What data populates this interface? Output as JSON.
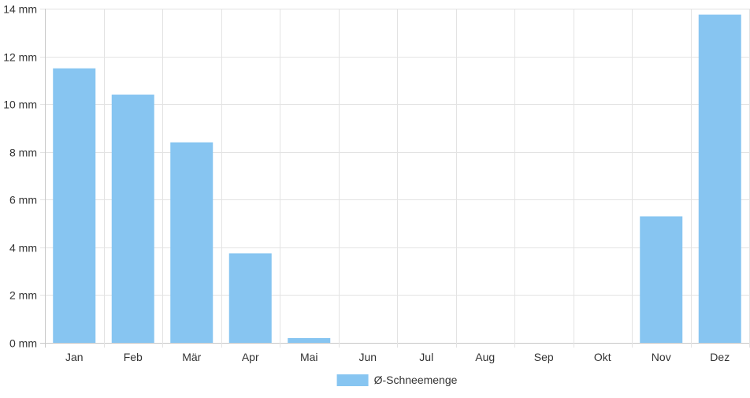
{
  "chart_data": {
    "type": "bar",
    "title": "",
    "xlabel": "",
    "ylabel": "",
    "categories": [
      "Jan",
      "Feb",
      "Mär",
      "Apr",
      "Mai",
      "Jun",
      "Jul",
      "Aug",
      "Sep",
      "Okt",
      "Nov",
      "Dez"
    ],
    "series": [
      {
        "name": "Ø-Schneemenge",
        "values": [
          11.5,
          10.4,
          8.4,
          3.75,
          0.2,
          0,
          0,
          0,
          0,
          0,
          5.3,
          13.75
        ],
        "color": "#87c5f1"
      }
    ],
    "ylim": [
      0,
      14
    ],
    "yticks": [
      0,
      2,
      4,
      6,
      8,
      10,
      12,
      14
    ],
    "ytick_labels": [
      "0 mm",
      "2 mm",
      "4 mm",
      "6 mm",
      "8 mm",
      "10 mm",
      "12 mm",
      "14 mm"
    ],
    "y_unit": "mm",
    "grid": true,
    "legend_position": "bottom-center"
  }
}
